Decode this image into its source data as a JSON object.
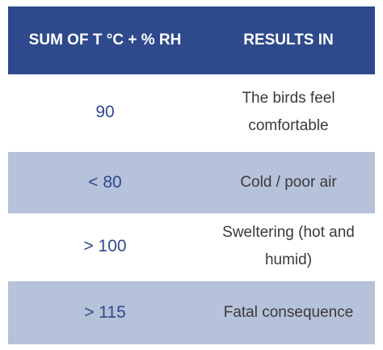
{
  "table": {
    "header": [
      "SUM OF T °C + % RH",
      "RESULTS IN"
    ],
    "rows": [
      [
        "90",
        "The birds feel comfortable"
      ],
      [
        "< 80",
        "Cold / poor air"
      ],
      [
        "> 100",
        "Sweltering (hot and humid)"
      ],
      [
        "> 115",
        "Fatal consequence"
      ]
    ]
  }
}
